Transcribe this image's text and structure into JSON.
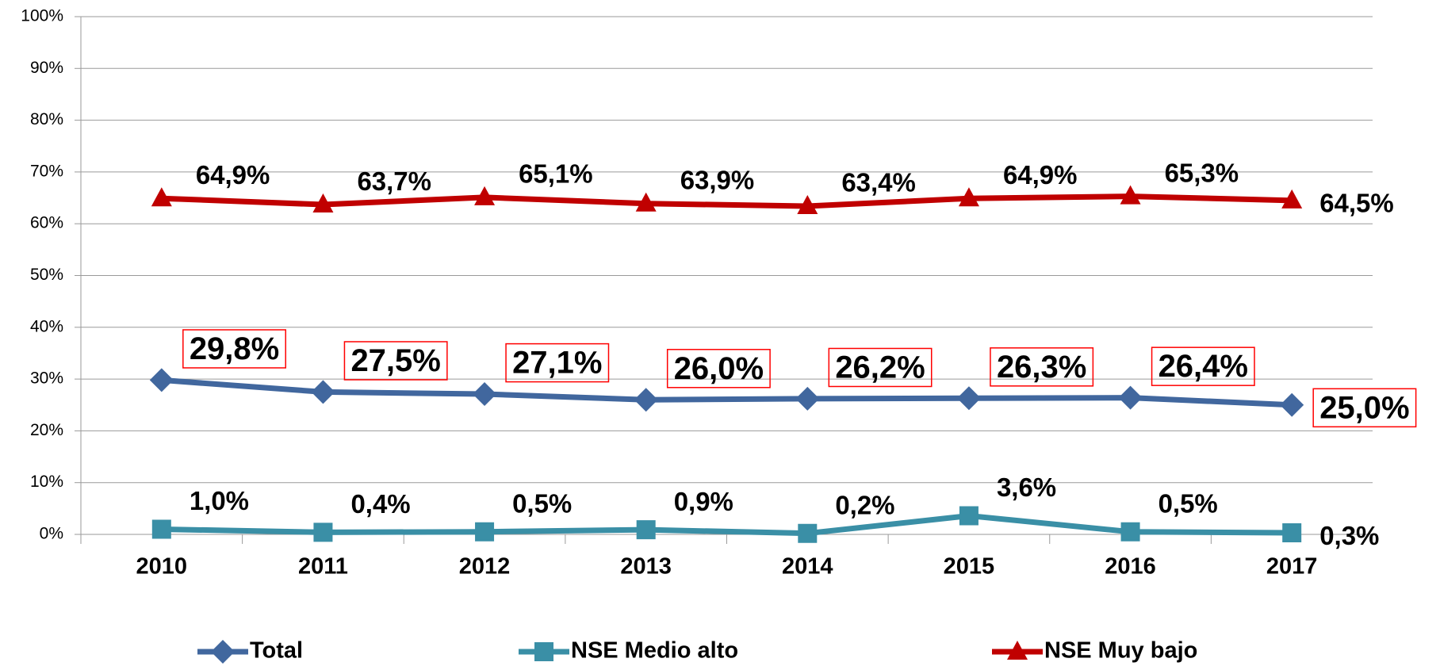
{
  "chart_data": {
    "type": "line",
    "categories": [
      "2010",
      "2011",
      "2012",
      "2013",
      "2014",
      "2015",
      "2016",
      "2017"
    ],
    "series": [
      {
        "name": "Total",
        "color": "#41679e",
        "marker": "diamond",
        "values": [
          29.8,
          27.5,
          27.1,
          26.0,
          26.2,
          26.3,
          26.4,
          25.0
        ],
        "value_labels": [
          "29,8%",
          "27,5%",
          "27,1%",
          "26,0%",
          "26,2%",
          "26,3%",
          "26,4%",
          "25,0%"
        ]
      },
      {
        "name": "NSE Medio alto",
        "color": "#3a8fa6",
        "marker": "square",
        "values": [
          1.0,
          0.4,
          0.5,
          0.9,
          0.2,
          3.6,
          0.5,
          0.3
        ],
        "value_labels": [
          "1,0%",
          "0,4%",
          "0,5%",
          "0,9%",
          "0,2%",
          "3,6%",
          "0,5%",
          "0,3%"
        ]
      },
      {
        "name": "NSE Muy bajo",
        "color": "#c00000",
        "marker": "triangle",
        "values": [
          64.9,
          63.7,
          65.1,
          63.9,
          63.4,
          64.9,
          65.3,
          64.5
        ],
        "value_labels": [
          "64,9%",
          "63,7%",
          "65,1%",
          "63,9%",
          "63,4%",
          "64,9%",
          "65,3%",
          "64,5%"
        ]
      }
    ],
    "ylim": [
      0,
      100
    ],
    "yticks": [
      {
        "value": 0,
        "label": "0%"
      },
      {
        "value": 10,
        "label": "10%"
      },
      {
        "value": 20,
        "label": "20%"
      },
      {
        "value": 30,
        "label": "30%"
      },
      {
        "value": 40,
        "label": "40%"
      },
      {
        "value": 50,
        "label": "50%"
      },
      {
        "value": 60,
        "label": "60%"
      },
      {
        "value": 70,
        "label": "70%"
      },
      {
        "value": 80,
        "label": "80%"
      },
      {
        "value": 90,
        "label": "90%"
      },
      {
        "value": 100,
        "label": "100%"
      }
    ],
    "grid": true,
    "legend": "bottom"
  }
}
